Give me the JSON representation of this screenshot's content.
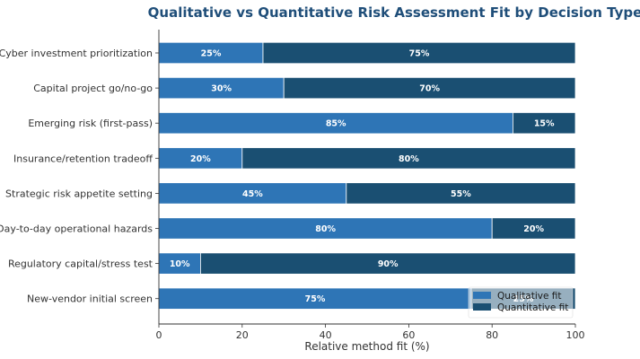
{
  "chart_data": {
    "type": "bar",
    "orientation": "horizontal",
    "stacked": true,
    "title": "Qualitative vs Quantitative Risk Assessment Fit by Decision Type",
    "xlabel": "Relative method fit (%)",
    "ylabel": "",
    "xlim": [
      0,
      100
    ],
    "xticks": [
      0,
      20,
      40,
      60,
      80,
      100
    ],
    "grid": false,
    "legend_position": "bottom-right",
    "categories": [
      "Cyber investment prioritization",
      "Capital project go/no-go",
      "Emerging risk (first-pass)",
      "Insurance/retention tradeoff",
      "Strategic risk appetite setting",
      "Day-to-day operational hazards",
      "Regulatory capital/stress test",
      "New-vendor initial screen"
    ],
    "series": [
      {
        "name": "Qualitative fit",
        "color": "#2e75b6",
        "values": [
          25,
          30,
          85,
          20,
          45,
          80,
          10,
          75
        ]
      },
      {
        "name": "Quantitative fit",
        "color": "#1a4f72",
        "values": [
          75,
          70,
          15,
          80,
          55,
          20,
          90,
          25
        ]
      }
    ]
  }
}
